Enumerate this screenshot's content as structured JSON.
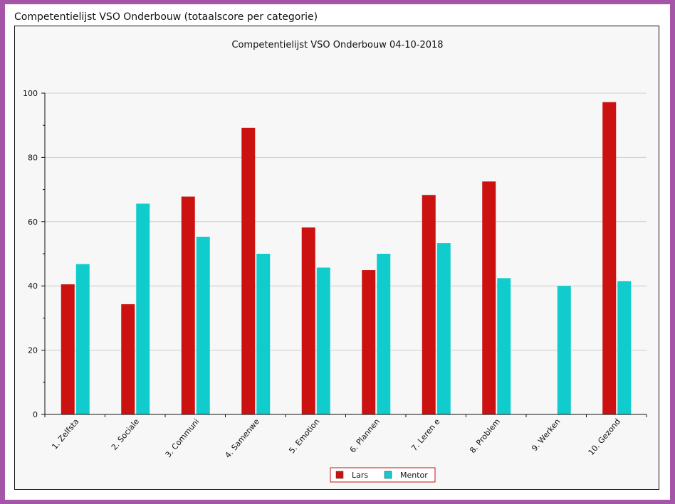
{
  "page": {
    "title": "Competentielijst VSO Onderbouw (totaalscore per categorie)"
  },
  "chart_data": {
    "type": "bar",
    "title": "Competentielijst VSO Onderbouw 04-10-2018",
    "xlabel": "",
    "ylabel": "",
    "ylim": [
      0,
      100
    ],
    "yticks": [
      0,
      20,
      40,
      60,
      80,
      100
    ],
    "grid": true,
    "legend_position": "bottom-center",
    "categories": [
      "1. Zelfsta",
      "2. Sociale",
      "3. Communi",
      "4. Samenwe",
      "5. Emotion",
      "6. Plannen",
      "7. Leren e",
      "8. Problem",
      "9. Werken",
      "10. Gezond"
    ],
    "series": [
      {
        "name": "Lars",
        "color": "#cc1111",
        "values": [
          40.5,
          34.3,
          67.8,
          89.2,
          58.2,
          44.9,
          68.3,
          72.5,
          null,
          97.2
        ]
      },
      {
        "name": "Mentor",
        "color": "#11cccc",
        "values": [
          46.8,
          65.6,
          55.3,
          50.0,
          45.7,
          50.0,
          53.3,
          42.4,
          40.0,
          41.5
        ]
      }
    ]
  }
}
